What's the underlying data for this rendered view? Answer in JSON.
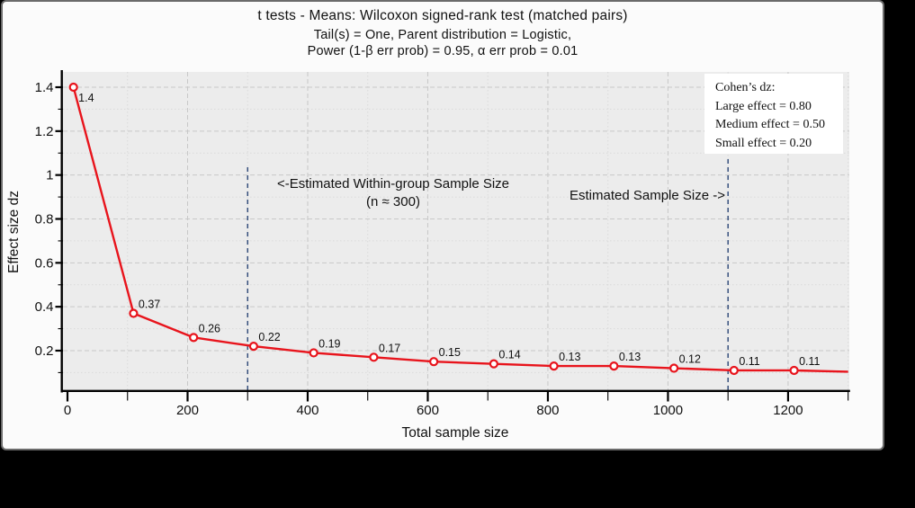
{
  "frame": {
    "canvas_bg": "#000000",
    "window_bg": "#fbfbfb",
    "window_border_color": "#6b6b6b"
  },
  "header": {
    "title": "t tests - Means: Wilcoxon signed-rank test (matched pairs)",
    "subtitle_line1": "Tail(s) = One, Parent distribution = Logistic,",
    "subtitle_line2": "Power (1-β err prob) = 0.95, α err prob = 0.01"
  },
  "chart_data": {
    "type": "line",
    "title": "t tests - Means: Wilcoxon signed-rank test (matched pairs)",
    "xlabel": "Total sample size",
    "ylabel": "Effect size dz",
    "xlim": [
      -12,
      1302
    ],
    "ylim": [
      0.016,
      1.47
    ],
    "grid": "major dashed + minor dotted",
    "plot_bg_color": "#ececec",
    "x_ticks": {
      "major": [
        0,
        200,
        400,
        600,
        800,
        1000,
        1200
      ],
      "major_labels": [
        "0",
        "200",
        "400",
        "600",
        "800",
        "1000",
        "1200"
      ],
      "minor": [
        100,
        300,
        500,
        700,
        900,
        1100,
        1300
      ]
    },
    "y_ticks": {
      "major": [
        0.2,
        0.4,
        0.6,
        0.8,
        1,
        1.2,
        1.4
      ],
      "major_labels": [
        "0.2",
        "0.4",
        "0.6",
        "0.8",
        "1",
        "1.2",
        "1.4"
      ],
      "minor": [
        0.1,
        0.3,
        0.5,
        0.7,
        0.9,
        1.1,
        1.3
      ]
    },
    "series": [
      {
        "name": "Effect size dz vs total sample size",
        "color": "#e8141c",
        "marker": "open-circle",
        "x": [
          10,
          110,
          210,
          310,
          410,
          510,
          610,
          710,
          810,
          910,
          1010,
          1110,
          1210
        ],
        "y": [
          1.4,
          0.37,
          0.26,
          0.22,
          0.19,
          0.17,
          0.15,
          0.14,
          0.13,
          0.13,
          0.12,
          0.11,
          0.11
        ],
        "point_labels": [
          "1.4",
          "0.37",
          "0.26",
          "0.22",
          "0.19",
          "0.17",
          "0.15",
          "0.14",
          "0.13",
          "0.13",
          "0.12",
          "0.11",
          "0.11"
        ],
        "curve_extension": {
          "x": 1300,
          "y": 0.104
        }
      }
    ],
    "reference_lines": [
      {
        "x": 300,
        "style": "dashed",
        "color": "#1d3a6d"
      },
      {
        "x": 1100,
        "style": "dashed",
        "color": "#1d3a6d"
      }
    ],
    "annotations": [
      {
        "line1": "<-Estimated Within-group Sample Size",
        "line2": "(n ≈ 300)",
        "at_x": 300
      },
      {
        "text": "Estimated Sample Size ->",
        "at_x": 1100
      }
    ],
    "legend": {
      "position": "top-right",
      "title": "Cohen’s dz:",
      "entries": [
        "Large effect = 0.80",
        "Medium effect = 0.50",
        "Small  effect = 0.20"
      ]
    }
  }
}
